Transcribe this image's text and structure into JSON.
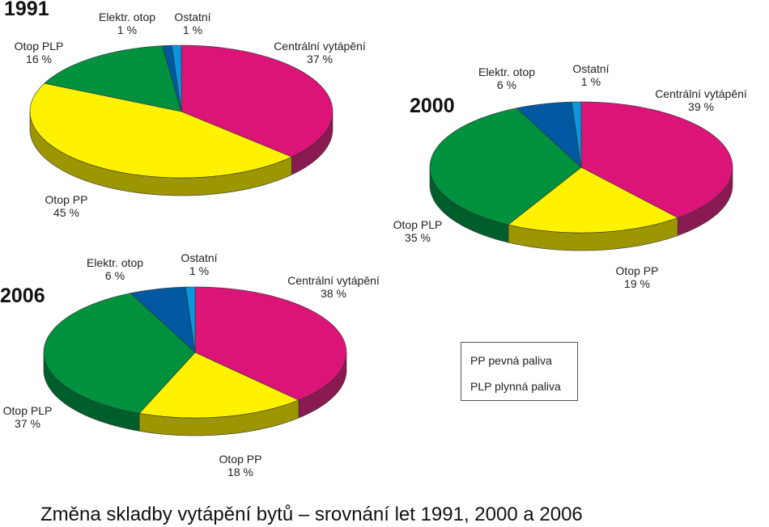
{
  "chart_data": [
    {
      "type": "pie",
      "title": "1991",
      "categories": [
        "Centrální vytápění",
        "Otop PP",
        "Otop PLP",
        "Elektr. otop",
        "Ostatní"
      ],
      "values": [
        37,
        45,
        16,
        1,
        1
      ],
      "value_labels": [
        "37 %",
        "45 %",
        "16 %",
        "1 %",
        "1 %"
      ]
    },
    {
      "type": "pie",
      "title": "2000",
      "categories": [
        "Centrální vytápění",
        "Otop PP",
        "Otop PLP",
        "Elektr. otop",
        "Ostatní"
      ],
      "values": [
        39,
        19,
        35,
        6,
        1
      ],
      "value_labels": [
        "39 %",
        "19 %",
        "35 %",
        "6 %",
        "1 %"
      ]
    },
    {
      "type": "pie",
      "title": "2006",
      "categories": [
        "Centrální vytápění",
        "Otop PP",
        "Otop PLP",
        "Elektr. otop",
        "Ostatní"
      ],
      "values": [
        38,
        18,
        37,
        6,
        1
      ],
      "value_labels": [
        "38 %",
        "18 %",
        "37 %",
        "6 %",
        "1 %"
      ]
    }
  ],
  "colors": {
    "top": [
      "#dc1478",
      "#fff200",
      "#00913f",
      "#0058a0",
      "#0a96dc"
    ],
    "side": [
      "#8a1a52",
      "#9c9600",
      "#005e2c",
      "#003c70",
      "#066a9c"
    ]
  },
  "legend": [
    "PP  pevná paliva",
    "PLP plynná paliva"
  ],
  "title": "Změna skladby vytápění bytů – srovnání let 1991, 2000 a 2006"
}
